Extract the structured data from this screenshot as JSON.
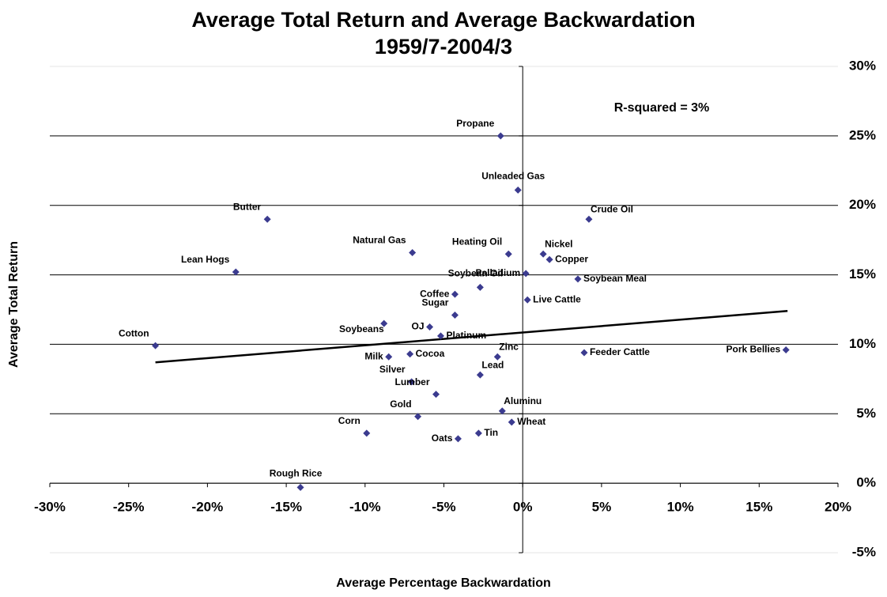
{
  "chart_data": {
    "type": "scatter",
    "title": "Average Total Return and Average Backwardation",
    "subtitle": "1959/7-2004/3",
    "x_label": "Average Percentage Backwardation",
    "y_label": "Average Total Return",
    "annotation": "R-squared =  3%",
    "color": "#3b3b8f",
    "grid": true,
    "xlim": [
      -30,
      20
    ],
    "ylim": [
      -5,
      30
    ],
    "xticks": [
      {
        "value": -30,
        "label": "-30%"
      },
      {
        "value": -25,
        "label": "-25%"
      },
      {
        "value": -20,
        "label": "-20%"
      },
      {
        "value": -15,
        "label": "-15%"
      },
      {
        "value": -10,
        "label": "-10%"
      },
      {
        "value": -5,
        "label": "-5%"
      },
      {
        "value": 0,
        "label": "0%"
      },
      {
        "value": 5,
        "label": "5%"
      },
      {
        "value": 10,
        "label": "10%"
      },
      {
        "value": 15,
        "label": "15%"
      },
      {
        "value": 20,
        "label": "20%"
      }
    ],
    "yticks": [
      {
        "value": -5,
        "label": "-5%"
      },
      {
        "value": 0,
        "label": "0%"
      },
      {
        "value": 5,
        "label": "5%"
      },
      {
        "value": 10,
        "label": "10%"
      },
      {
        "value": 15,
        "label": "15%"
      },
      {
        "value": 20,
        "label": "20%"
      },
      {
        "value": 25,
        "label": "25%"
      },
      {
        "value": 30,
        "label": "30%"
      }
    ],
    "labels": [
      "Propane",
      "Unleaded Gas",
      "Butter",
      "Crude Oil",
      "Natural Gas",
      "Heating Oil",
      "Nickel",
      "Copper",
      "Lean Hogs",
      "Palladium",
      "Soybean Meal",
      "Soybean Oil",
      "Coffee",
      "Live Cattle",
      "Sugar",
      "Soybeans",
      "OJ",
      "Platinum",
      "Cotton",
      "Pork Bellies",
      "Milk",
      "Cocoa",
      "Zinc",
      "Feeder Cattle",
      "Lead",
      "Silver",
      "Lumber",
      "Aluminu",
      "Gold",
      "Wheat",
      "Corn",
      "Tin",
      "Oats",
      "Rough Rice"
    ],
    "x": [
      -1.4,
      -0.3,
      -16.2,
      4.2,
      -7.0,
      -0.9,
      1.3,
      1.7,
      -18.2,
      0.2,
      3.5,
      -2.7,
      -4.3,
      0.3,
      -4.3,
      -8.8,
      -5.9,
      -5.2,
      -23.3,
      16.7,
      -8.5,
      -7.15,
      -1.6,
      3.9,
      -2.7,
      -7.05,
      -5.5,
      -1.3,
      -6.65,
      -0.7,
      -9.9,
      -2.8,
      -4.1,
      -14.1
    ],
    "values": [
      25.0,
      21.1,
      19.0,
      19.0,
      16.6,
      16.5,
      16.5,
      16.1,
      15.2,
      15.1,
      14.7,
      14.1,
      13.6,
      13.2,
      12.1,
      11.5,
      11.25,
      10.6,
      9.9,
      9.6,
      9.1,
      9.3,
      9.1,
      9.4,
      7.8,
      7.3,
      6.4,
      5.2,
      4.8,
      4.4,
      3.6,
      3.6,
      3.2,
      -0.3
    ],
    "trendline": {
      "x": [
        -23.3,
        16.8
      ],
      "y": [
        8.7,
        12.4
      ]
    }
  }
}
